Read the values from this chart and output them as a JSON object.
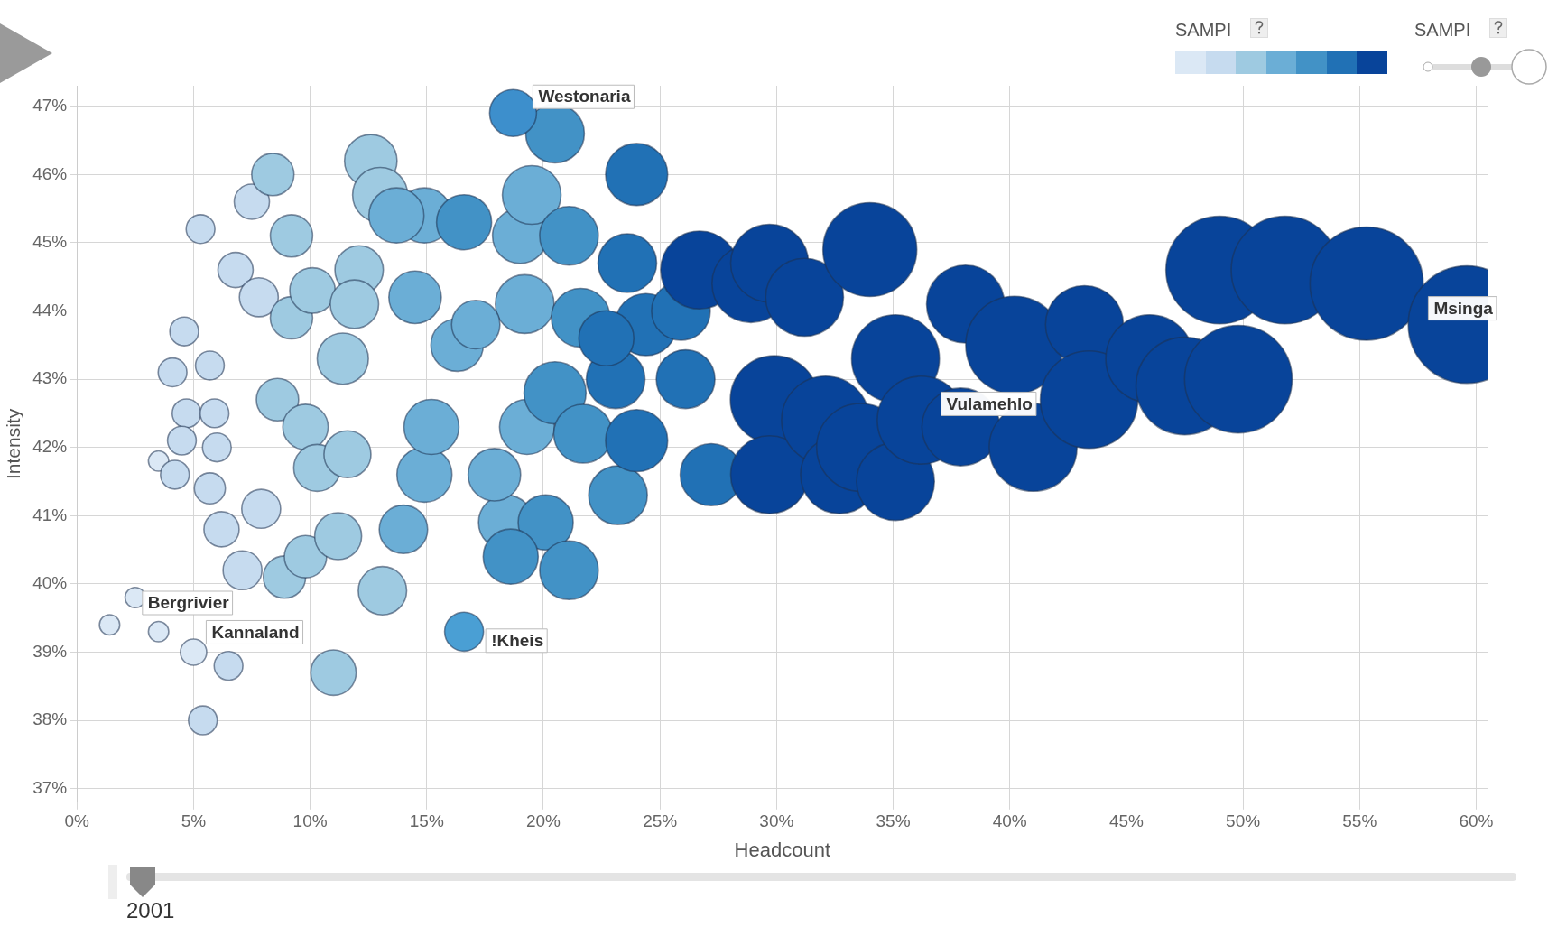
{
  "chart_data": {
    "type": "bubble",
    "xlabel": "Headcount",
    "ylabel": "Intensity",
    "legend_title": "SAMPI",
    "grid": true,
    "legend": false,
    "xlim": [
      0,
      60.5
    ],
    "ylim": [
      36.8,
      47.3
    ],
    "xticks": [
      {
        "value": 0,
        "label": "0%"
      },
      {
        "value": 5,
        "label": "5%"
      },
      {
        "value": 10,
        "label": "10%"
      },
      {
        "value": 15,
        "label": "15%"
      },
      {
        "value": 20,
        "label": "20%"
      },
      {
        "value": 25,
        "label": "25%"
      },
      {
        "value": 30,
        "label": "30%"
      },
      {
        "value": 35,
        "label": "35%"
      },
      {
        "value": 40,
        "label": "40%"
      },
      {
        "value": 45,
        "label": "45%"
      },
      {
        "value": 50,
        "label": "50%"
      },
      {
        "value": 55,
        "label": "55%"
      },
      {
        "value": 60,
        "label": "60%"
      }
    ],
    "yticks": [
      {
        "value": 37,
        "label": "37%"
      },
      {
        "value": 38,
        "label": "38%"
      },
      {
        "value": 39,
        "label": "39%"
      },
      {
        "value": 40,
        "label": "40%"
      },
      {
        "value": 41,
        "label": "41%"
      },
      {
        "value": 42,
        "label": "42%"
      },
      {
        "value": 43,
        "label": "43%"
      },
      {
        "value": 44,
        "label": "44%"
      },
      {
        "value": 45,
        "label": "45%"
      },
      {
        "value": 46,
        "label": "46%"
      },
      {
        "value": 47,
        "label": "47%"
      }
    ],
    "series": [
      {
        "x": [
          1.4,
          2.5,
          3.5,
          3.5,
          5.0,
          5.4,
          6.5,
          4.1,
          4.6,
          5.3,
          5.7,
          4.7,
          5.9,
          4.5,
          6.0,
          4.2,
          5.7,
          6.2,
          6.8,
          7.5,
          7.8,
          7.9,
          7.1,
          8.4,
          9.2,
          8.6,
          8.9,
          9.2,
          10.1,
          9.8,
          11.0,
          11.2,
          9.8,
          10.3,
          11.6,
          11.4,
          12.1,
          11.9,
          13.1,
          12.6,
          13.0,
          14.0,
          14.9,
          15.2,
          14.5,
          14.9,
          13.7,
          16.3,
          18.4,
          19.3,
          19.0,
          19.5,
          19.2,
          17.1,
          17.9,
          16.6,
          20.5,
          20.1,
          21.1,
          18.6,
          16.6,
          20.5,
          21.6,
          21.1,
          21.7,
          23.2,
          24.0,
          23.6,
          24.4,
          24.0,
          26.1,
          27.2,
          25.9,
          23.1,
          22.7,
          18.7,
          26.7,
          28.9,
          29.7,
          31.2,
          34.0,
          29.9,
          29.7,
          32.1,
          32.7,
          33.6,
          35.1,
          35.1,
          36.2,
          38.1,
          37.9,
          40.2,
          41.0,
          43.2,
          43.4,
          46.0,
          47.5,
          49.0,
          49.8,
          51.8,
          55.3,
          59.6
        ],
        "values": [
          39.4,
          39.8,
          41.8,
          39.3,
          39.0,
          38.0,
          38.8,
          43.1,
          43.7,
          45.2,
          43.2,
          42.5,
          42.5,
          42.1,
          42.0,
          41.6,
          41.4,
          40.8,
          44.6,
          45.6,
          44.2,
          41.1,
          40.2,
          46.0,
          45.1,
          42.7,
          40.1,
          43.9,
          44.3,
          40.4,
          38.7,
          40.7,
          42.3,
          41.7,
          41.9,
          43.3,
          44.6,
          44.1,
          39.9,
          46.2,
          45.7,
          40.8,
          41.6,
          42.3,
          44.2,
          45.4,
          45.4,
          43.5,
          40.9,
          42.3,
          45.1,
          45.7,
          44.1,
          43.8,
          41.6,
          39.3,
          46.6,
          40.9,
          40.2,
          40.4,
          45.3,
          42.8,
          43.9,
          45.1,
          42.2,
          41.3,
          46.0,
          44.7,
          43.8,
          42.1,
          43.0,
          41.6,
          44.0,
          43.0,
          43.6,
          46.9,
          44.6,
          44.4,
          44.7,
          44.2,
          44.9,
          42.7,
          41.6,
          42.4,
          41.6,
          42.0,
          41.5,
          43.3,
          42.4,
          44.1,
          42.3,
          43.5,
          42.0,
          43.8,
          42.7,
          43.3,
          42.9,
          44.6,
          43.0,
          44.6,
          44.4,
          43.8
        ],
        "sizes": [
          0.03,
          0.03,
          0.03,
          0.03,
          0.05,
          0.06,
          0.06,
          0.06,
          0.06,
          0.06,
          0.06,
          0.06,
          0.06,
          0.06,
          0.06,
          0.06,
          0.07,
          0.09,
          0.09,
          0.09,
          0.11,
          0.11,
          0.11,
          0.13,
          0.13,
          0.13,
          0.13,
          0.13,
          0.15,
          0.13,
          0.15,
          0.16,
          0.15,
          0.16,
          0.16,
          0.19,
          0.17,
          0.17,
          0.17,
          0.2,
          0.22,
          0.17,
          0.22,
          0.22,
          0.2,
          0.22,
          0.22,
          0.2,
          0.22,
          0.22,
          0.22,
          0.25,
          0.25,
          0.17,
          0.2,
          0.11,
          0.25,
          0.22,
          0.25,
          0.22,
          0.22,
          0.28,
          0.25,
          0.25,
          0.25,
          0.25,
          0.28,
          0.25,
          0.28,
          0.28,
          0.25,
          0.28,
          0.25,
          0.25,
          0.22,
          0.16,
          0.44,
          0.44,
          0.44,
          0.44,
          0.64,
          0.56,
          0.44,
          0.56,
          0.44,
          0.56,
          0.44,
          0.56,
          0.56,
          0.44,
          0.44,
          0.69,
          0.56,
          0.44,
          0.69,
          0.56,
          0.69,
          0.84,
          0.84,
          0.84,
          0.93,
          1
        ],
        "colors": [
          "#dbe8f5",
          "#dbe8f5",
          "#dbe8f5",
          "#dbe8f5",
          "#dbe8f5",
          "#c6dbef",
          "#c6dbef",
          "#c6dbef",
          "#c6dbef",
          "#c6dbef",
          "#c6dbef",
          "#c6dbef",
          "#c6dbef",
          "#c6dbef",
          "#c6dbef",
          "#c6dbef",
          "#c6dbef",
          "#c6dbef",
          "#c6dbef",
          "#c6dbef",
          "#c6dbef",
          "#c6dbef",
          "#c6dbef",
          "#9ecae1",
          "#9ecae1",
          "#9ecae1",
          "#9ecae1",
          "#9ecae1",
          "#9ecae1",
          "#9ecae1",
          "#9ecae1",
          "#9ecae1",
          "#9ecae1",
          "#9ecae1",
          "#9ecae1",
          "#9ecae1",
          "#9ecae1",
          "#9ecae1",
          "#9ecae1",
          "#9ecae1",
          "#9ecae1",
          "#6baed6",
          "#6baed6",
          "#6baed6",
          "#6baed6",
          "#6baed6",
          "#6baed6",
          "#6baed6",
          "#6baed6",
          "#6baed6",
          "#6baed6",
          "#6baed6",
          "#6baed6",
          "#6baed6",
          "#6baed6",
          "#4a9fd4",
          "#4292c6",
          "#4292c6",
          "#4292c6",
          "#4292c6",
          "#4292c6",
          "#4292c6",
          "#4292c6",
          "#4292c6",
          "#4292c6",
          "#4292c6",
          "#2171b5",
          "#2171b5",
          "#2171b5",
          "#2171b5",
          "#2171b5",
          "#2171b5",
          "#2171b5",
          "#2171b5",
          "#2171b5",
          "#3d8fcc",
          "#08449a",
          "#08449a",
          "#08449a",
          "#08449a",
          "#08449a",
          "#08449a",
          "#08449a",
          "#08449a",
          "#08449a",
          "#08449a",
          "#08449a",
          "#08449a",
          "#08449a",
          "#08449a",
          "#08449a",
          "#08449a",
          "#08449a",
          "#08449a",
          "#08449a",
          "#08449a",
          "#08449a",
          "#08449a",
          "#08449a",
          "#08449a",
          "#08449a",
          "#08449a"
        ]
      }
    ],
    "annotations": [
      {
        "text": "Westonaria",
        "x": 18.7,
        "y": 46.9
      },
      {
        "text": "Msinga",
        "x": 59.6,
        "y": 43.8
      },
      {
        "text": "Vulamehlo",
        "x": 36.2,
        "y": 42.4
      },
      {
        "text": "Bergrivier",
        "x": 2.5,
        "y": 39.8
      },
      {
        "text": "Kannaland",
        "x": 5.0,
        "y": 39.0
      },
      {
        "text": "!Kheis",
        "x": 16.6,
        "y": 39.3
      },
      "SAMPI",
      "2001"
    ]
  }
}
